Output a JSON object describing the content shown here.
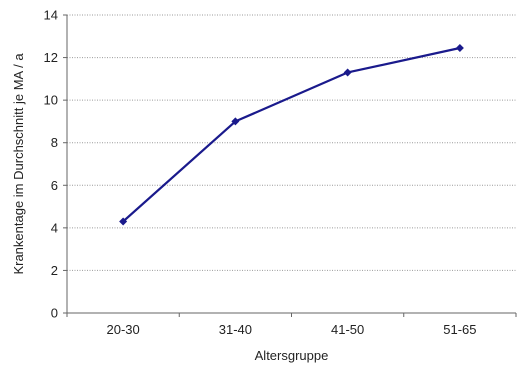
{
  "chart_data": {
    "type": "line",
    "categories": [
      "20-30",
      "31-40",
      "41-50",
      "51-65"
    ],
    "series": [
      {
        "values": [
          4.3,
          9.0,
          11.3,
          12.45
        ]
      }
    ],
    "title": "",
    "xlabel": "Altersgruppe",
    "ylabel": "Krankentage im Durchschnitt je MA / a",
    "ylim": [
      0,
      14
    ],
    "yticks": [
      "0",
      "2",
      "4",
      "6",
      "8",
      "10",
      "12",
      "14"
    ],
    "grid": true,
    "legend": "none",
    "marker": "diamond",
    "line_color": "#1a1a8c"
  }
}
